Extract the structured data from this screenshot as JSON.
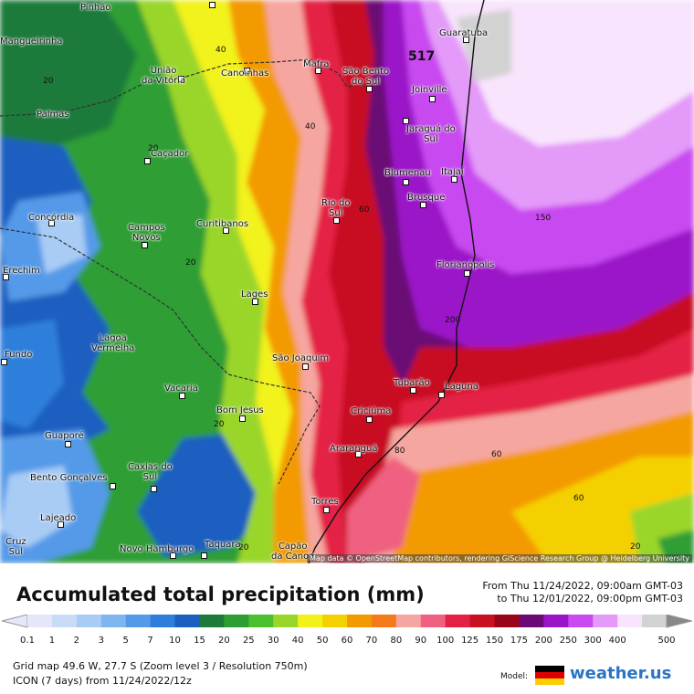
{
  "map": {
    "attribution": "Map data © OpenStreetMap contributors, rendering GIScience Research Group @ Heidelberg University",
    "number_label": "517",
    "cities": [
      {
        "name": "Pinhão"
      },
      {
        "name": "Mangueirinha"
      },
      {
        "name": "União\nda Vitória"
      },
      {
        "name": "Canoinhas"
      },
      {
        "name": "Mafra"
      },
      {
        "name": "São Bento\ndo Sul"
      },
      {
        "name": "Guaratuba"
      },
      {
        "name": "Joinville"
      },
      {
        "name": "Palmas"
      },
      {
        "name": "Jaraguá do\nSul"
      },
      {
        "name": "Caçador"
      },
      {
        "name": "Blumenau"
      },
      {
        "name": "Itajaí"
      },
      {
        "name": "Brusque"
      },
      {
        "name": "Rio do\nSul"
      },
      {
        "name": "Concórdia"
      },
      {
        "name": "Campos\nNovos"
      },
      {
        "name": "Curitibanos"
      },
      {
        "name": "Erechim"
      },
      {
        "name": "Florianópolis"
      },
      {
        "name": "Lages"
      },
      {
        "name": "Lagoa\nVermelha"
      },
      {
        "name": "Fundo"
      },
      {
        "name": "São Joaquim"
      },
      {
        "name": "Tubarão"
      },
      {
        "name": "Laguna"
      },
      {
        "name": "Vacaria"
      },
      {
        "name": "Bom Jesus"
      },
      {
        "name": "Criciúma"
      },
      {
        "name": "Guaporé"
      },
      {
        "name": "Araranguá"
      },
      {
        "name": "Bento Gonçalves"
      },
      {
        "name": "Caxias do\nSul"
      },
      {
        "name": "Torres"
      },
      {
        "name": "Lajeado"
      },
      {
        "name": "Cruz\nSul"
      },
      {
        "name": "Novo Hamburgo"
      },
      {
        "name": "Taquara"
      },
      {
        "name": "Capão\nda Canoa"
      }
    ],
    "contour_labels": [
      "40",
      "20",
      "20",
      "40",
      "20",
      "60",
      "150",
      "200",
      "20",
      "20",
      "80",
      "60",
      "60",
      "20"
    ]
  },
  "legend": {
    "title": "Accumulated total precipitation (mm)",
    "period_from": "From Thu 11/24/2022, 09:00am GMT-03",
    "period_to": "to Thu 12/01/2022, 09:00pm GMT-03",
    "scale": [
      {
        "label": "0.1",
        "color": "#e6e6fa"
      },
      {
        "label": "1",
        "color": "#c8dcf7"
      },
      {
        "label": "2",
        "color": "#a9ccf5"
      },
      {
        "label": "3",
        "color": "#7fb6f0"
      },
      {
        "label": "5",
        "color": "#549ae8"
      },
      {
        "label": "7",
        "color": "#2e7fdb"
      },
      {
        "label": "10",
        "color": "#1a5fc0"
      },
      {
        "label": "15",
        "color": "#1e7a3a"
      },
      {
        "label": "20",
        "color": "#2e9e34"
      },
      {
        "label": "25",
        "color": "#4cbf2e"
      },
      {
        "label": "30",
        "color": "#9ad62a"
      },
      {
        "label": "40",
        "color": "#f2f21a"
      },
      {
        "label": "50",
        "color": "#f5d000"
      },
      {
        "label": "60",
        "color": "#f39a00"
      },
      {
        "label": "70",
        "color": "#f57a1a"
      },
      {
        "label": "80",
        "color": "#f6a6a0"
      },
      {
        "label": "90",
        "color": "#f06080"
      },
      {
        "label": "100",
        "color": "#e42045"
      },
      {
        "label": "125",
        "color": "#c81020"
      },
      {
        "label": "150",
        "color": "#9a0418"
      },
      {
        "label": "175",
        "color": "#6b0a75"
      },
      {
        "label": "200",
        "color": "#9a14c8"
      },
      {
        "label": "250",
        "color": "#c84af0"
      },
      {
        "label": "300",
        "color": "#e49af8"
      },
      {
        "label": "400",
        "color": "#f8e4fc"
      },
      {
        "label": "500",
        "color": "#d2d2d2"
      }
    ]
  },
  "footer": {
    "grid_info": "Grid map 49.6 W, 27.7 S (Zoom level 3 / Resolution 750m)",
    "model_info": "ICON (7 days) from  11/24/2022/12z",
    "model_label": "Model:",
    "brand": "weather.us"
  }
}
